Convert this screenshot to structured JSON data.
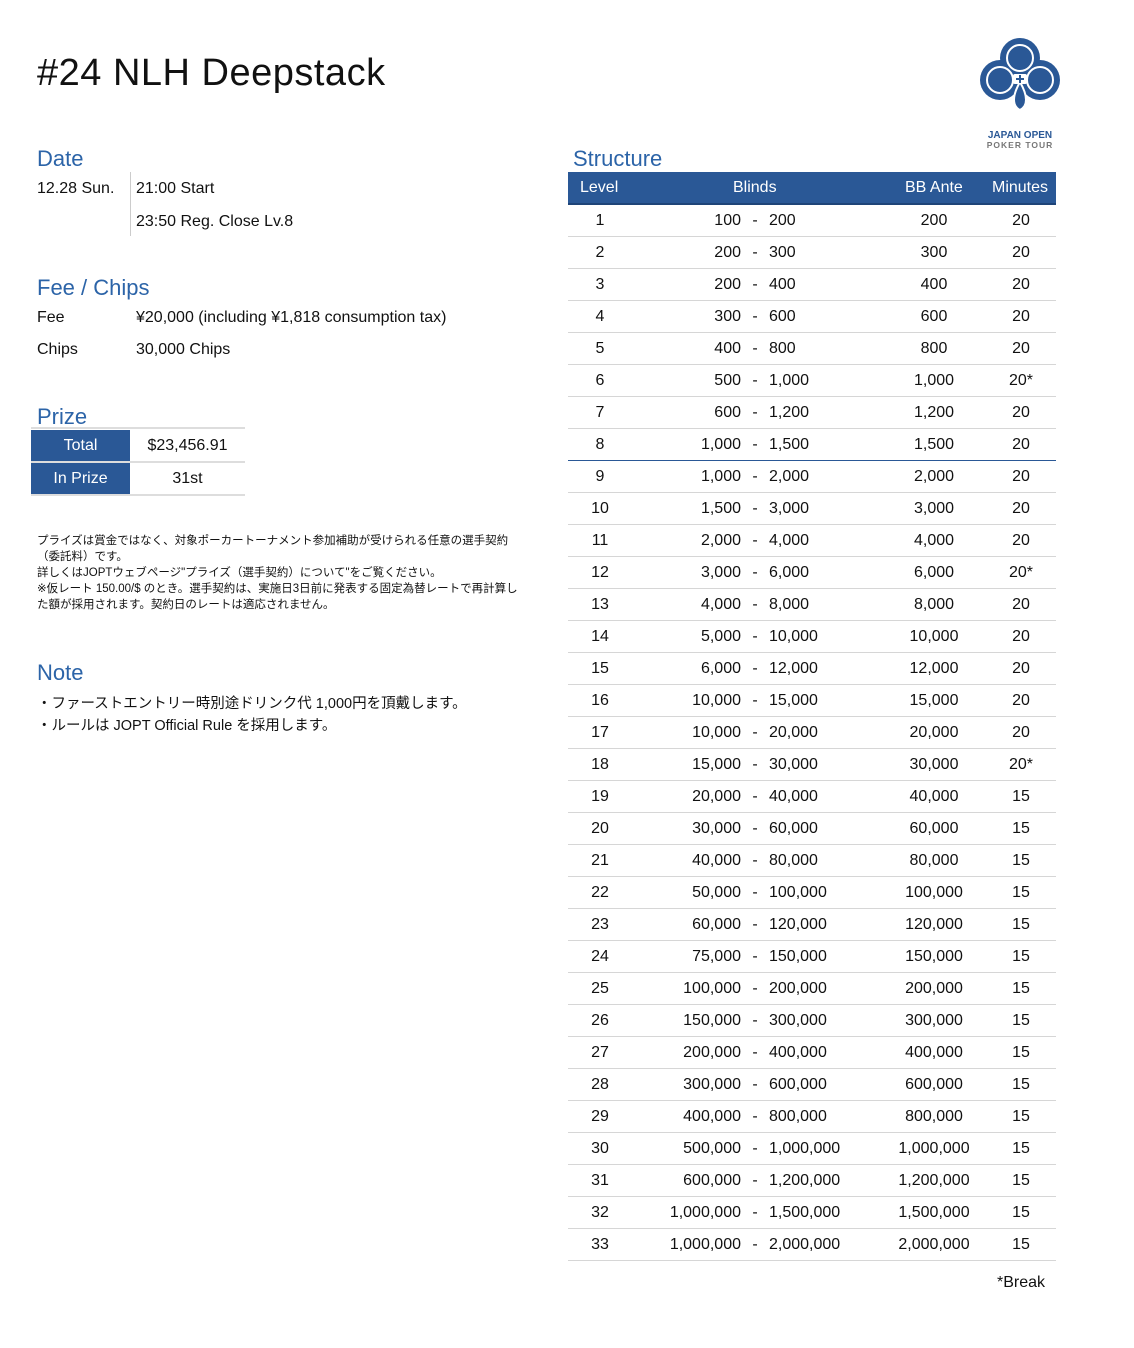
{
  "title": "#24 NLH Deepstack",
  "logo": {
    "line1": "JAPAN OPEN",
    "line2": "POKER TOUR",
    "color": "#2a5896"
  },
  "date": {
    "heading": "Date",
    "day": "12.28 Sun.",
    "start": "21:00 Start",
    "reg_close": "23:50 Reg. Close Lv.8"
  },
  "fee": {
    "heading": "Fee / Chips",
    "fee_label": "Fee",
    "fee_value": "¥20,000 (including ¥1,818 consumption tax)",
    "chips_label": "Chips",
    "chips_value": "30,000 Chips"
  },
  "prize": {
    "heading": "Prize",
    "total_label": "Total",
    "total_value": "$23,456.91",
    "inprize_label": "In Prize",
    "inprize_value": "31st",
    "notes": [
      "プライズは賞金ではなく、対象ポーカートーナメント参加補助が受けられる任意の選手契約（委託料）です。",
      "詳しくはJOPTウェブページ\"プライズ（選手契約）について\"をご覧ください。",
      "※仮レート 150.00/$ のとき。選手契約は、実施日3日前に発表する固定為替レートで再計算した額が採用されます。契約日のレートは適応されません。"
    ]
  },
  "note": {
    "heading": "Note",
    "items": [
      "・ファーストエントリー時別途ドリンク代 1,000円を頂戴します。",
      "・ルールは JOPT Official Rule を採用します。"
    ]
  },
  "structure": {
    "heading": "Structure",
    "columns": [
      "Level",
      "Blinds",
      "BB Ante",
      "Minutes"
    ],
    "footnote": "*Break",
    "accent": "#2a5896",
    "rows": [
      [
        "1",
        "100",
        "200",
        "200",
        "20"
      ],
      [
        "2",
        "200",
        "300",
        "300",
        "20"
      ],
      [
        "3",
        "200",
        "400",
        "400",
        "20"
      ],
      [
        "4",
        "300",
        "600",
        "600",
        "20"
      ],
      [
        "5",
        "400",
        "800",
        "800",
        "20"
      ],
      [
        "6",
        "500",
        "1,000",
        "1,000",
        "20*"
      ],
      [
        "7",
        "600",
        "1,200",
        "1,200",
        "20"
      ],
      [
        "8",
        "1,000",
        "1,500",
        "1,500",
        "20"
      ],
      [
        "9",
        "1,000",
        "2,000",
        "2,000",
        "20"
      ],
      [
        "10",
        "1,500",
        "3,000",
        "3,000",
        "20"
      ],
      [
        "11",
        "2,000",
        "4,000",
        "4,000",
        "20"
      ],
      [
        "12",
        "3,000",
        "6,000",
        "6,000",
        "20*"
      ],
      [
        "13",
        "4,000",
        "8,000",
        "8,000",
        "20"
      ],
      [
        "14",
        "5,000",
        "10,000",
        "10,000",
        "20"
      ],
      [
        "15",
        "6,000",
        "12,000",
        "12,000",
        "20"
      ],
      [
        "16",
        "10,000",
        "15,000",
        "15,000",
        "20"
      ],
      [
        "17",
        "10,000",
        "20,000",
        "20,000",
        "20"
      ],
      [
        "18",
        "15,000",
        "30,000",
        "30,000",
        "20*"
      ],
      [
        "19",
        "20,000",
        "40,000",
        "40,000",
        "15"
      ],
      [
        "20",
        "30,000",
        "60,000",
        "60,000",
        "15"
      ],
      [
        "21",
        "40,000",
        "80,000",
        "80,000",
        "15"
      ],
      [
        "22",
        "50,000",
        "100,000",
        "100,000",
        "15"
      ],
      [
        "23",
        "60,000",
        "120,000",
        "120,000",
        "15"
      ],
      [
        "24",
        "75,000",
        "150,000",
        "150,000",
        "15"
      ],
      [
        "25",
        "100,000",
        "200,000",
        "200,000",
        "15"
      ],
      [
        "26",
        "150,000",
        "300,000",
        "300,000",
        "15"
      ],
      [
        "27",
        "200,000",
        "400,000",
        "400,000",
        "15"
      ],
      [
        "28",
        "300,000",
        "600,000",
        "600,000",
        "15"
      ],
      [
        "29",
        "400,000",
        "800,000",
        "800,000",
        "15"
      ],
      [
        "30",
        "500,000",
        "1,000,000",
        "1,000,000",
        "15"
      ],
      [
        "31",
        "600,000",
        "1,200,000",
        "1,200,000",
        "15"
      ],
      [
        "32",
        "1,000,000",
        "1,500,000",
        "1,500,000",
        "15"
      ],
      [
        "33",
        "1,000,000",
        "2,000,000",
        "2,000,000",
        "15"
      ]
    ]
  }
}
